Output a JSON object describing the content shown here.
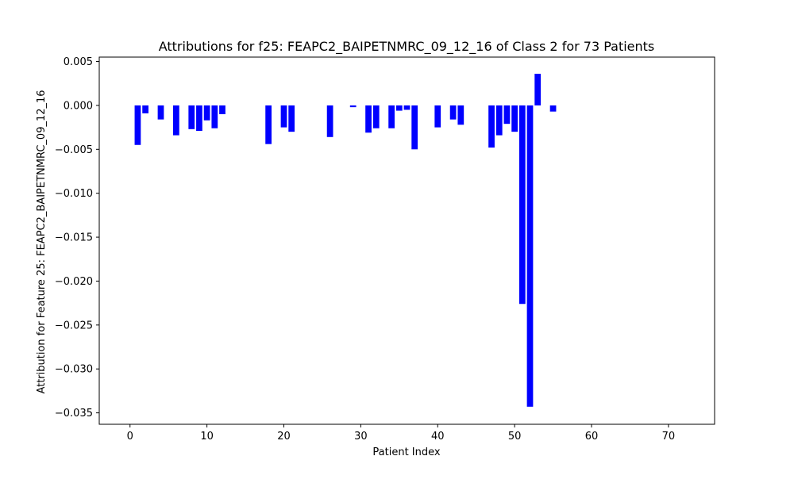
{
  "chart_data": {
    "type": "bar",
    "title": "Attributions for f25: FEAPC2_BAIPETNMRC_09_12_16 of Class 2 for 73 Patients",
    "xlabel": "Patient Index",
    "ylabel": "Attribution for Feature 25: FEAPC2_BAIPETNMRC_09_12_16",
    "xlim": [
      -4,
      76
    ],
    "ylim": [
      -0.0363,
      0.0055
    ],
    "x_ticks": [
      0,
      10,
      20,
      30,
      40,
      50,
      60,
      70
    ],
    "x_tick_labels": [
      "0",
      "10",
      "20",
      "30",
      "40",
      "50",
      "60",
      "70"
    ],
    "y_ticks": [
      -0.035,
      -0.03,
      -0.025,
      -0.02,
      -0.015,
      -0.01,
      -0.005,
      0.0,
      0.005
    ],
    "y_tick_labels": [
      "−0.035",
      "−0.030",
      "−0.025",
      "−0.020",
      "−0.015",
      "−0.010",
      "−0.005",
      "0.000",
      "0.005"
    ],
    "bar_color": "#0000ff",
    "grid": false,
    "x": [
      1,
      2,
      4,
      6,
      8,
      9,
      10,
      11,
      12,
      18,
      20,
      21,
      26,
      29,
      31,
      32,
      34,
      35,
      36,
      37,
      40,
      42,
      43,
      47,
      48,
      49,
      50,
      51,
      52,
      53,
      55
    ],
    "values": [
      -0.0045,
      -0.0009,
      -0.0016,
      -0.0034,
      -0.0027,
      -0.0029,
      -0.0017,
      -0.0026,
      -0.001,
      -0.0044,
      -0.0025,
      -0.003,
      -0.0036,
      -0.0002,
      -0.0031,
      -0.0026,
      -0.0026,
      -0.0006,
      -0.0005,
      -0.005,
      -0.0025,
      -0.0016,
      -0.0022,
      -0.0048,
      -0.0034,
      -0.0021,
      -0.003,
      -0.0226,
      -0.0343,
      0.0036,
      -0.0007
    ]
  }
}
